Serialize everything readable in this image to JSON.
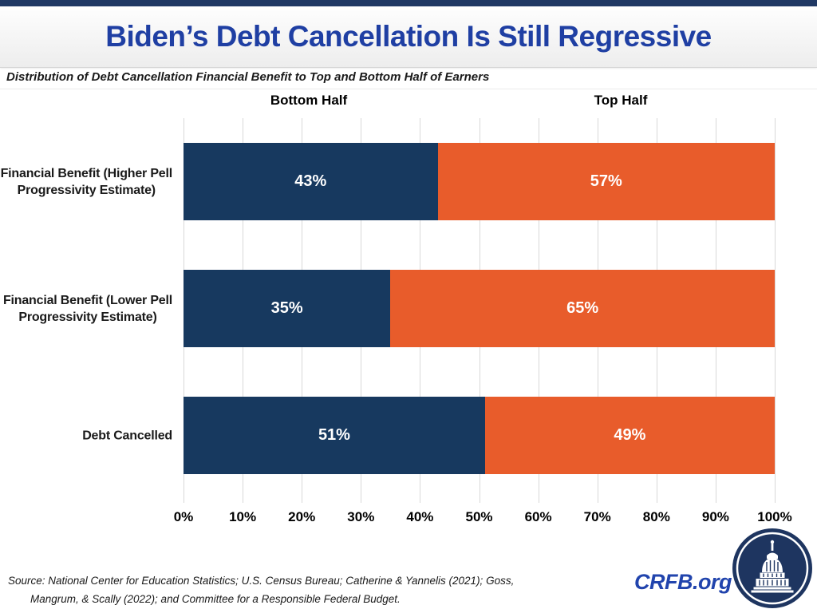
{
  "header": {
    "title": "Biden’s Debt Cancellation Is Still Regressive",
    "subtitle": "Distribution of Debt Cancellation Financial Benefit to Top and Bottom Half of Earners"
  },
  "chart_data": {
    "type": "bar",
    "orientation": "horizontal",
    "stacked": true,
    "title": "Biden’s Debt Cancellation Is Still Regressive",
    "subtitle": "Distribution of Debt Cancellation Financial Benefit to Top and Bottom Half of Earners",
    "categories": [
      "Financial Benefit (Higher Pell\nProgressivity Estimate)",
      "Financial Benefit (Lower Pell\nProgressivity Estimate)",
      "Debt Cancelled"
    ],
    "series": [
      {
        "name": "Bottom Half",
        "color": "#17395F",
        "values": [
          43,
          35,
          51
        ]
      },
      {
        "name": "Top Half",
        "color": "#E85C2B",
        "values": [
          57,
          65,
          49
        ]
      }
    ],
    "value_suffix": "%",
    "xlim": [
      0,
      100
    ],
    "x_ticks": [
      "0%",
      "10%",
      "20%",
      "30%",
      "40%",
      "50%",
      "60%",
      "70%",
      "80%",
      "90%",
      "100%"
    ],
    "grid": true,
    "legend_position": "column-headers-above-plot"
  },
  "footer": {
    "source_line1": "Source: National Center for Education Statistics; U.S. Census Bureau; Catherine & Yannelis (2021); Goss,",
    "source_line2": "Mangrum, & Scally (2022); and Committee for a Responsible Federal Budget.",
    "brand": "CRFB.org",
    "logo_icon": "capitol-dome-icon"
  },
  "colors": {
    "navy": "#17395F",
    "orange": "#E85C2B",
    "title_blue": "#1F3FA3",
    "brand_blue": "#2144AD",
    "top_strip": "#203864",
    "gridline": "#D9D9D9"
  }
}
